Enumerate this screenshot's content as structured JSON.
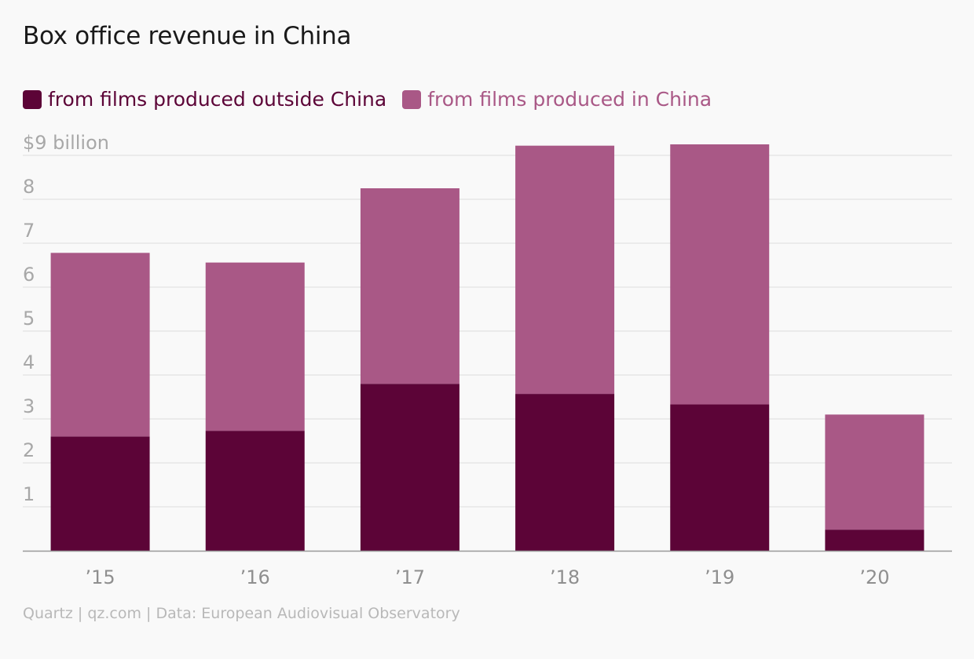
{
  "title": "Box office revenue in China",
  "source": "Quartz | qz.com | Data: European Audiovisual Observatory",
  "colors": {
    "outside": "#5c0437",
    "inside": "#a95886",
    "grid": "#e3e3e3",
    "axis": "#999999"
  },
  "chart_data": {
    "type": "bar",
    "stacked": true,
    "categories": [
      "’15",
      "’16",
      "’17",
      "’18",
      "’19",
      "’20"
    ],
    "series": [
      {
        "name": "from films produced outside China",
        "values": [
          2.6,
          2.73,
          3.8,
          3.57,
          3.33,
          0.48
        ]
      },
      {
        "name": "from films produced in China",
        "values": [
          4.18,
          3.83,
          4.45,
          5.65,
          5.92,
          2.62
        ]
      }
    ],
    "yticks": [
      "$9 billion",
      "8",
      "7",
      "6",
      "5",
      "4",
      "3",
      "2",
      "1"
    ],
    "ytick_values": [
      9,
      8,
      7,
      6,
      5,
      4,
      3,
      2,
      1
    ],
    "ylim": [
      0,
      9
    ],
    "grid": true,
    "legend": "top-left"
  }
}
